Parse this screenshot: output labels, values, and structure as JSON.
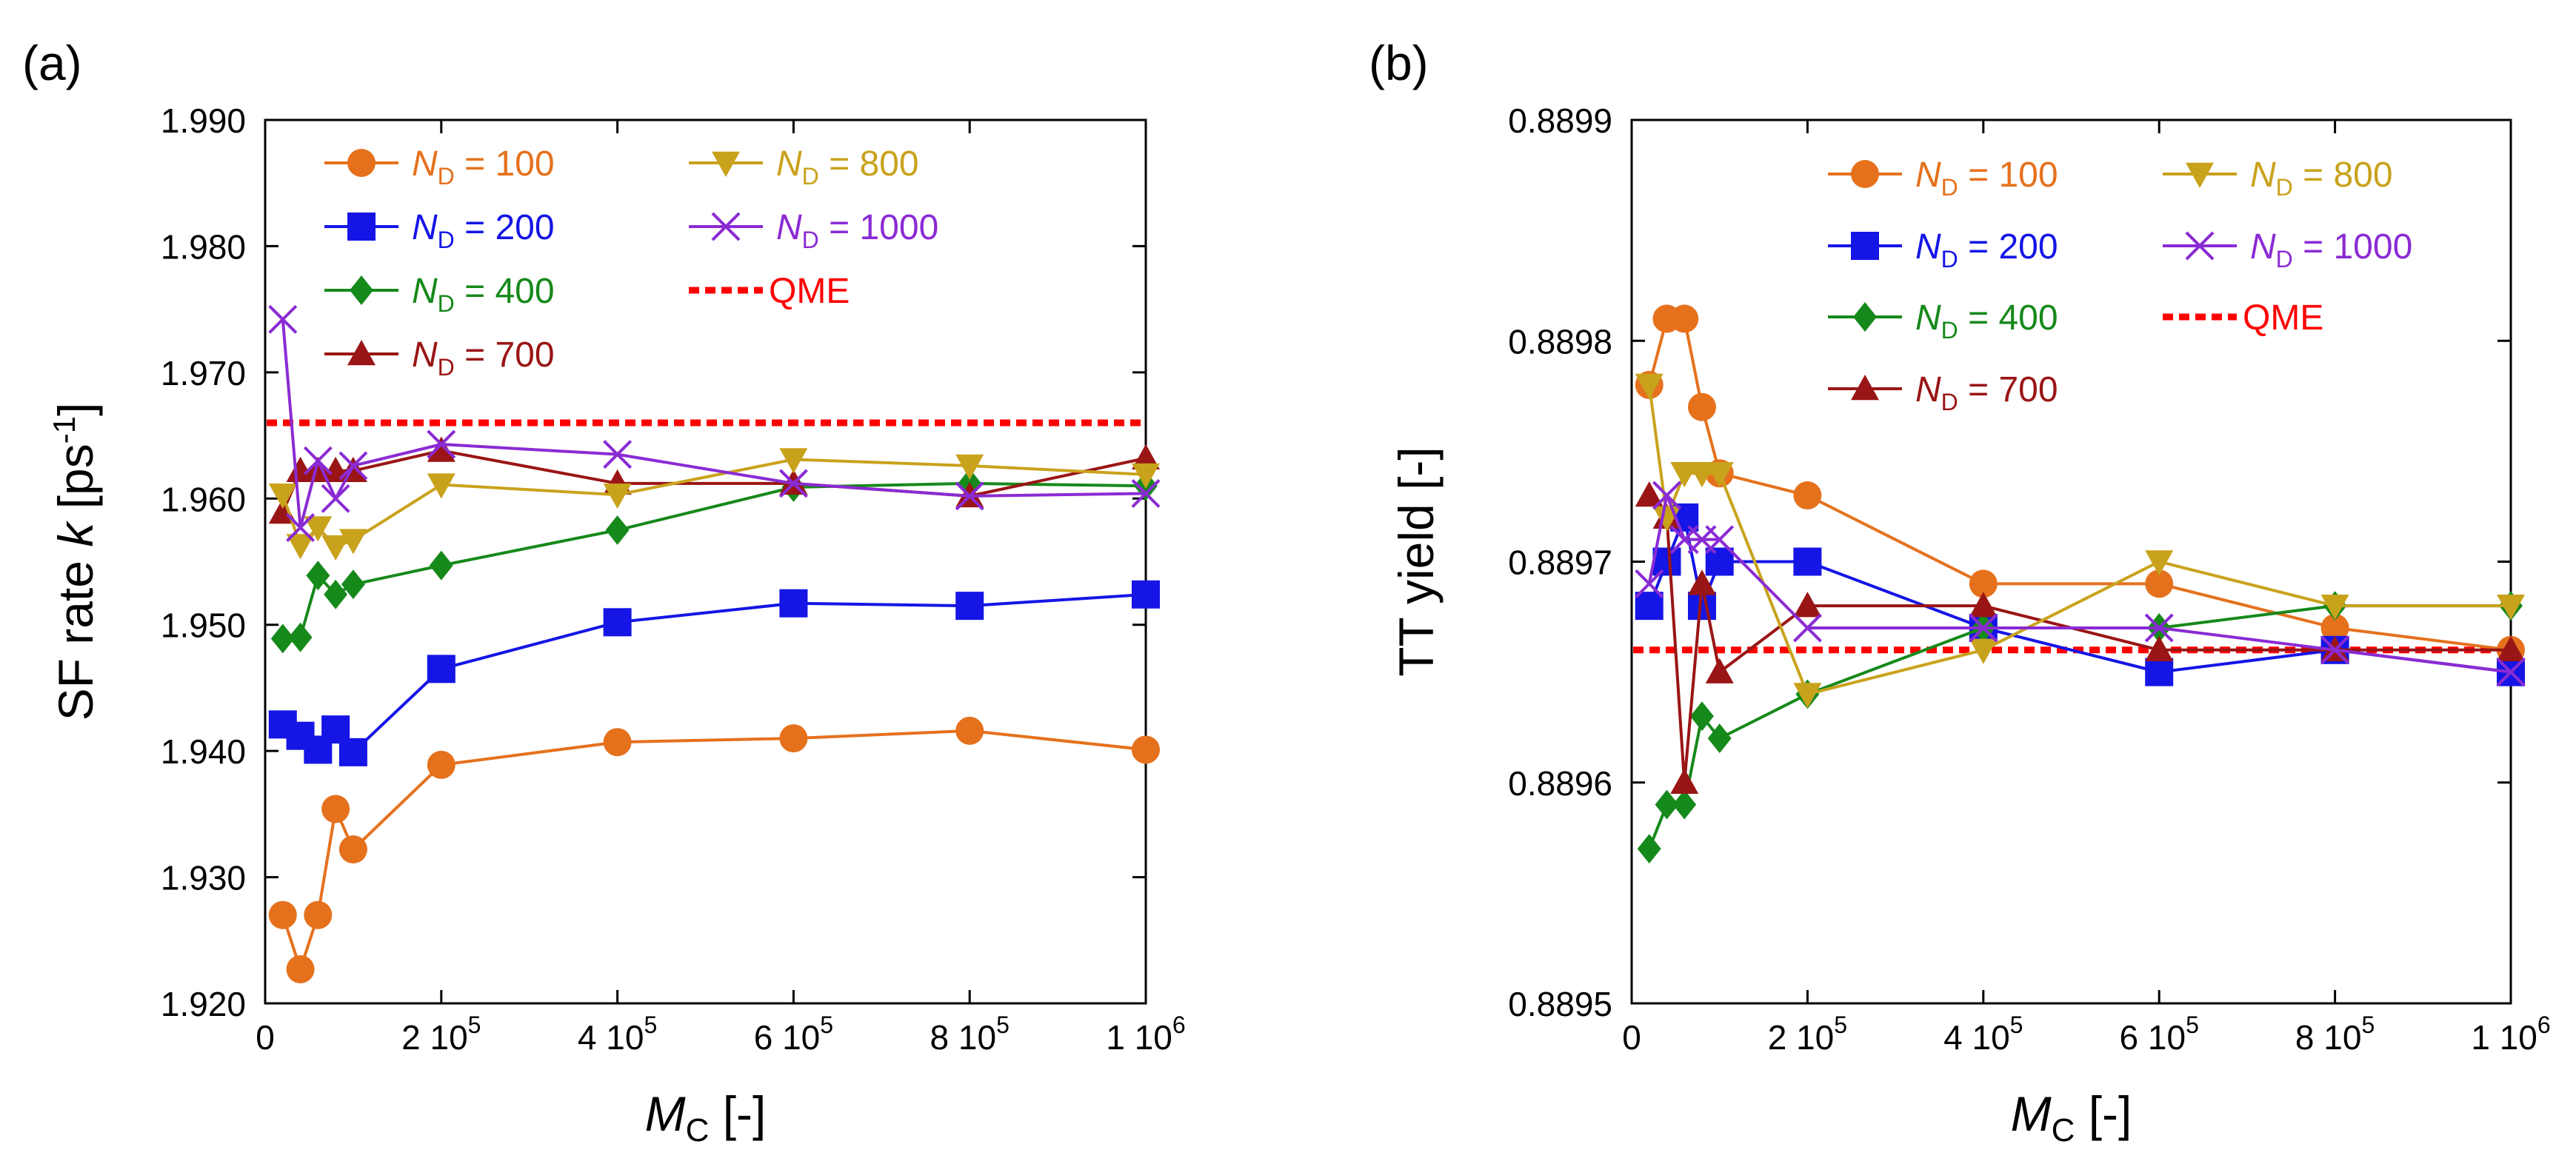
{
  "figure": {
    "panels": [
      "(a)",
      "(b)"
    ]
  },
  "colors": {
    "n100": "#e5711d",
    "n200": "#1515e6",
    "n400": "#16891b",
    "n700": "#9a1515",
    "n800": "#c9a21c",
    "n1000": "#8a2bd4",
    "qme": "#ff0000",
    "axis": "#000000"
  },
  "chart_data": [
    {
      "panel_label": "(a)",
      "type": "line",
      "ylabel_main": "SF rate ",
      "ylabel_var": "k",
      "ylabel_unit": " [ps",
      "ylabel_sup": "-1",
      "ylabel_close": "]",
      "xlabel_var": "M",
      "xlabel_sub": "C",
      "xlabel_unit": " [-]",
      "xlim": [
        0,
        1000000
      ],
      "ylim": [
        1.92,
        1.99
      ],
      "yticks": [
        1.92,
        1.93,
        1.94,
        1.95,
        1.96,
        1.97,
        1.98,
        1.99
      ],
      "ytick_labels": [
        "1.920",
        "1.930",
        "1.940",
        "1.950",
        "1.960",
        "1.970",
        "1.980",
        "1.990"
      ],
      "xticks": [
        0,
        200000,
        400000,
        600000,
        800000,
        1000000
      ],
      "xtick_labels": [
        "0",
        "2 10",
        "4 10",
        "6 10",
        "8 10",
        "1 10"
      ],
      "xtick_exps": [
        "",
        "5",
        "5",
        "5",
        "5",
        "6"
      ],
      "series": [
        {
          "key": "n100",
          "var": "N",
          "sub": "D",
          "eq": " = 100",
          "marker": "circle",
          "x": [
            20000,
            40000,
            60000,
            80000,
            100000,
            200000,
            400000,
            600000,
            800000,
            1000000
          ],
          "y": [
            1.927,
            1.9227,
            1.927,
            1.9354,
            1.9322,
            1.9389,
            1.9407,
            1.941,
            1.9416,
            1.9401
          ]
        },
        {
          "key": "n200",
          "var": "N",
          "sub": "D",
          "eq": " = 200",
          "marker": "square",
          "x": [
            20000,
            40000,
            60000,
            80000,
            100000,
            200000,
            400000,
            600000,
            800000,
            1000000
          ],
          "y": [
            1.9421,
            1.9412,
            1.9401,
            1.9417,
            1.9399,
            1.9465,
            1.9502,
            1.9517,
            1.9515,
            1.9524
          ]
        },
        {
          "key": "n400",
          "var": "N",
          "sub": "D",
          "eq": " = 400",
          "marker": "diamond",
          "x": [
            20000,
            40000,
            60000,
            80000,
            100000,
            200000,
            400000,
            600000,
            800000,
            1000000
          ],
          "y": [
            1.9489,
            1.949,
            1.9539,
            1.9524,
            1.9532,
            1.9547,
            1.9575,
            1.9609,
            1.9612,
            1.961
          ]
        },
        {
          "key": "n700",
          "var": "N",
          "sub": "D",
          "eq": " = 700",
          "marker": "triangle",
          "x": [
            20000,
            40000,
            60000,
            80000,
            100000,
            200000,
            400000,
            600000,
            800000,
            1000000
          ],
          "y": [
            1.9589,
            1.9622,
            1.9622,
            1.9622,
            1.9622,
            1.9638,
            1.9612,
            1.9612,
            1.9602,
            1.9632
          ]
        },
        {
          "key": "n800",
          "var": "N",
          "sub": "D",
          "eq": " = 800",
          "marker": "tri-down",
          "x": [
            20000,
            40000,
            60000,
            80000,
            100000,
            200000,
            400000,
            600000,
            800000,
            1000000
          ],
          "y": [
            1.9603,
            1.9563,
            1.9577,
            1.9562,
            1.9567,
            1.9611,
            1.9603,
            1.9631,
            1.9626,
            1.9619
          ]
        },
        {
          "key": "n1000",
          "var": "N",
          "sub": "D",
          "eq": " = 1000",
          "marker": "x",
          "x": [
            20000,
            40000,
            60000,
            80000,
            100000,
            200000,
            400000,
            600000,
            800000,
            1000000
          ],
          "y": [
            1.9742,
            1.9577,
            1.963,
            1.96,
            1.9626,
            1.9643,
            1.9635,
            1.9612,
            1.9602,
            1.9604
          ]
        }
      ],
      "reference_line": {
        "key": "qme",
        "label": "QME",
        "y": 1.966
      },
      "legend_position": "top"
    },
    {
      "panel_label": "(b)",
      "type": "line",
      "ylabel_main": "TT yield [-]",
      "xlabel_var": "M",
      "xlabel_sub": "C",
      "xlabel_unit": " [-]",
      "xlim": [
        0,
        1000000
      ],
      "ylim": [
        0.8895,
        0.8899
      ],
      "yticks": [
        0.8895,
        0.8896,
        0.8897,
        0.8898,
        0.8899
      ],
      "ytick_labels": [
        "0.8895",
        "0.8896",
        "0.8897",
        "0.8898",
        "0.8899"
      ],
      "xticks": [
        0,
        200000,
        400000,
        600000,
        800000,
        1000000
      ],
      "xtick_labels": [
        "0",
        "2 10",
        "4 10",
        "6 10",
        "8 10",
        "1 10"
      ],
      "xtick_exps": [
        "",
        "5",
        "5",
        "5",
        "5",
        "6"
      ],
      "series": [
        {
          "key": "n100",
          "var": "N",
          "sub": "D",
          "eq": " = 100",
          "marker": "circle",
          "x": [
            20000,
            40000,
            60000,
            80000,
            100000,
            200000,
            400000,
            600000,
            800000,
            1000000
          ],
          "y": [
            0.88978,
            0.88981,
            0.88981,
            0.88977,
            0.88974,
            0.88973,
            0.88969,
            0.88969,
            0.88967,
            0.88966
          ]
        },
        {
          "key": "n200",
          "var": "N",
          "sub": "D",
          "eq": " = 200",
          "marker": "square",
          "x": [
            20000,
            40000,
            60000,
            80000,
            100000,
            200000,
            400000,
            600000,
            800000,
            1000000
          ],
          "y": [
            0.88968,
            0.8897,
            0.88972,
            0.88968,
            0.8897,
            0.8897,
            0.88967,
            0.88965,
            0.88966,
            0.88965
          ]
        },
        {
          "key": "n400",
          "var": "N",
          "sub": "D",
          "eq": " = 400",
          "marker": "diamond",
          "x": [
            20000,
            40000,
            60000,
            80000,
            100000,
            200000,
            400000,
            600000,
            800000,
            1000000
          ],
          "y": [
            0.88957,
            0.88959,
            0.88959,
            0.88963,
            0.88962,
            0.88964,
            0.88967,
            0.88967,
            0.88968,
            0.88968
          ]
        },
        {
          "key": "n700",
          "var": "N",
          "sub": "D",
          "eq": " = 700",
          "marker": "triangle",
          "x": [
            20000,
            40000,
            60000,
            80000,
            100000,
            200000,
            400000,
            600000,
            800000,
            1000000
          ],
          "y": [
            0.88973,
            0.88972,
            0.8896,
            0.88969,
            0.88965,
            0.88968,
            0.88968,
            0.88966,
            0.88966,
            0.88966
          ]
        },
        {
          "key": "n800",
          "var": "N",
          "sub": "D",
          "eq": " = 800",
          "marker": "tri-down",
          "x": [
            20000,
            40000,
            60000,
            80000,
            100000,
            200000,
            400000,
            600000,
            800000,
            1000000
          ],
          "y": [
            0.88978,
            0.88972,
            0.88974,
            0.88974,
            0.88974,
            0.88964,
            0.88966,
            0.8897,
            0.88968,
            0.88968
          ]
        },
        {
          "key": "n1000",
          "var": "N",
          "sub": "D",
          "eq": " = 1000",
          "marker": "x",
          "x": [
            20000,
            40000,
            60000,
            80000,
            100000,
            200000,
            400000,
            600000,
            800000,
            1000000
          ],
          "y": [
            0.88969,
            0.88973,
            0.88971,
            0.88971,
            0.88971,
            0.88967,
            0.88967,
            0.88967,
            0.88966,
            0.88965
          ]
        }
      ],
      "reference_line": {
        "key": "qme",
        "label": "QME",
        "y": 0.88966
      },
      "legend_position": "top"
    }
  ]
}
